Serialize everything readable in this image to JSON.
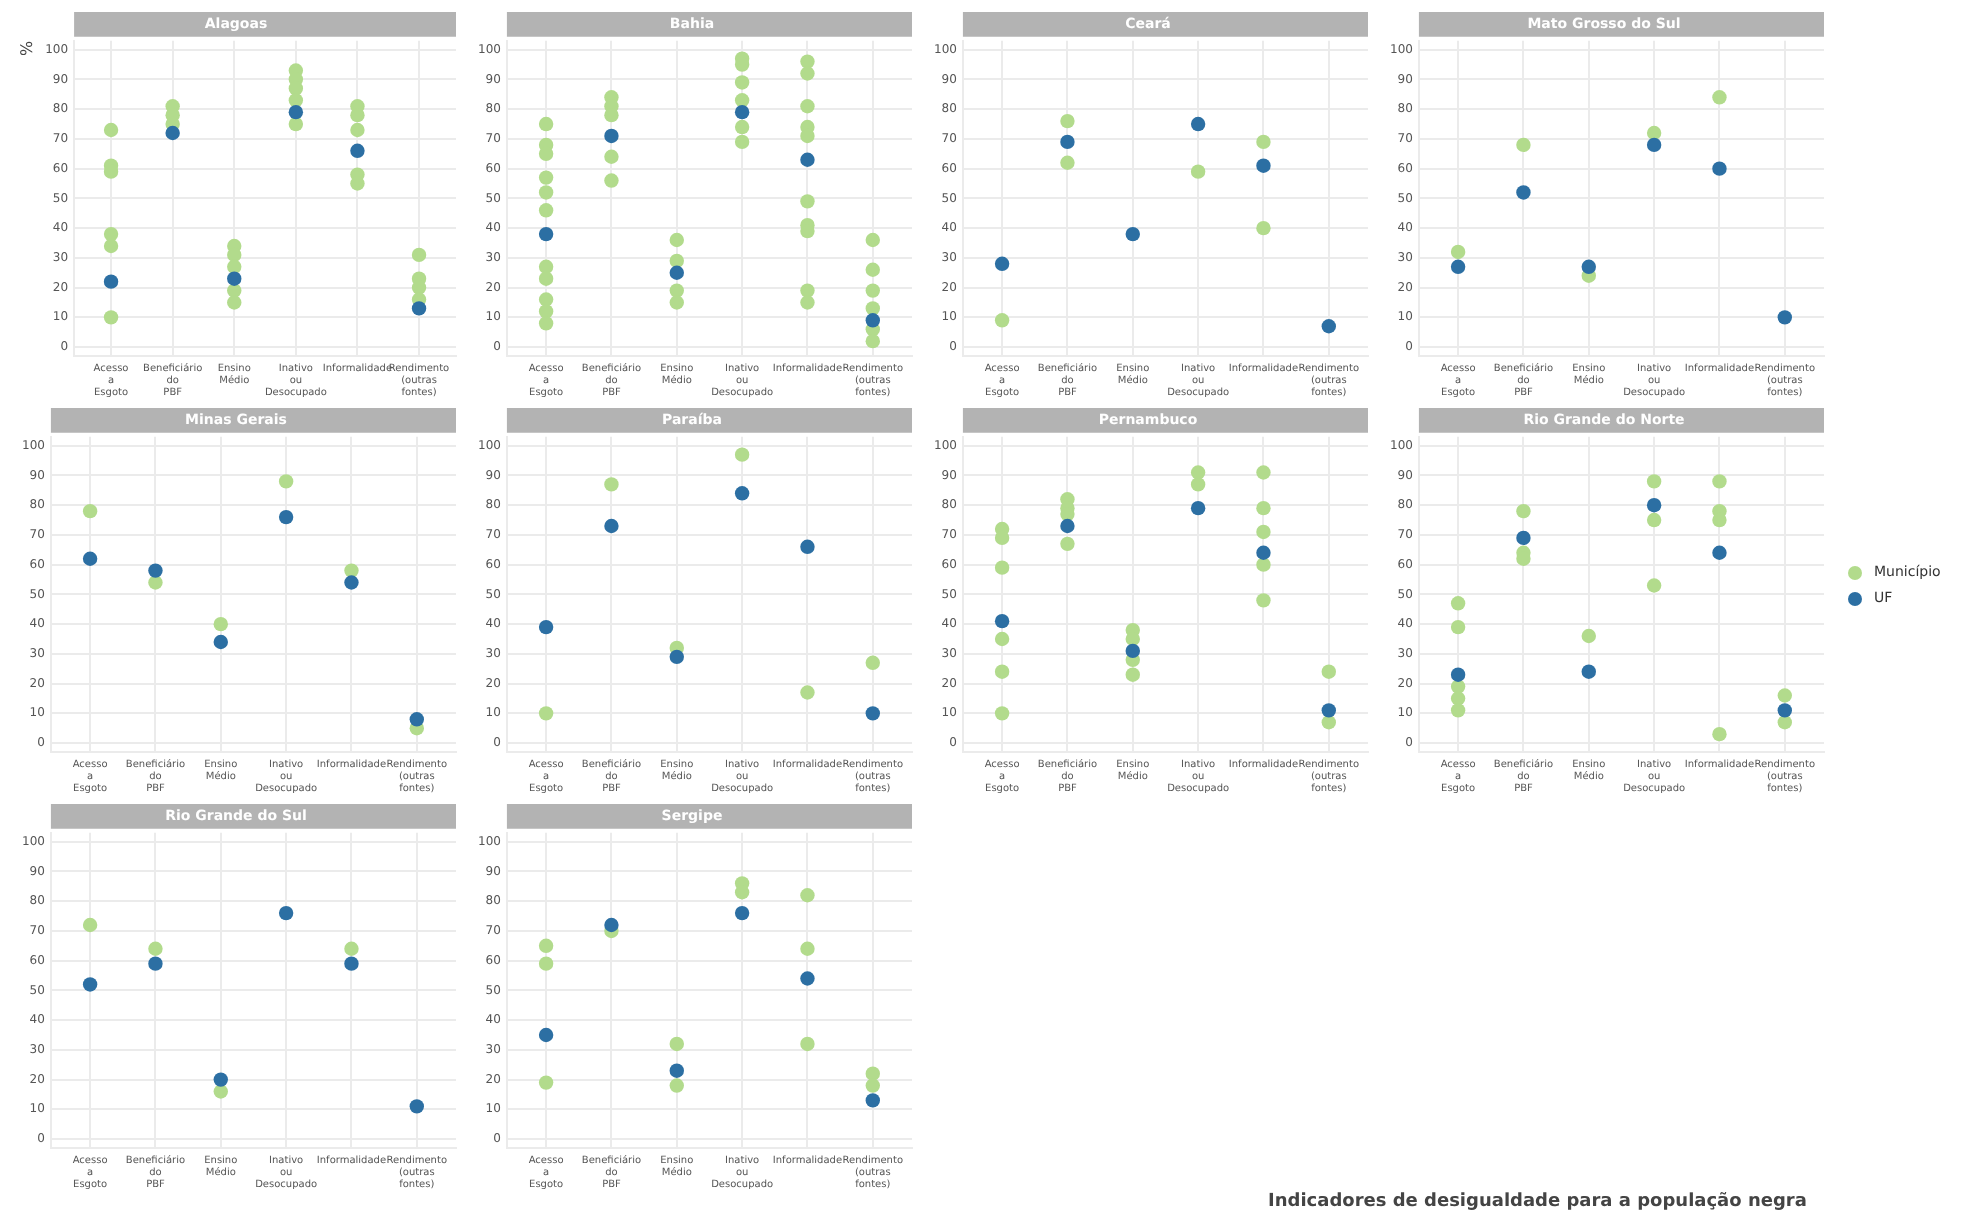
{
  "chart_data": [
    {
      "type": "scatter",
      "title": "Alagoas",
      "ylabel": "%",
      "categories": [
        "Acesso a Esgoto",
        "Beneficiário do PBF",
        "Ensino Médio",
        "Inativo ou Desocupado",
        "Informalidade",
        "Rendimento (outras fontes)"
      ],
      "ylim": [
        -3,
        103
      ],
      "yticks": [
        0,
        10,
        20,
        30,
        40,
        50,
        60,
        70,
        80,
        90,
        100
      ],
      "grid": true,
      "marker": "circle",
      "series": [
        {
          "color": "#b2db8c",
          "x": [
            "Acesso a Esgoto",
            "Acesso a Esgoto",
            "Acesso a Esgoto",
            "Acesso a Esgoto",
            "Acesso a Esgoto",
            "Acesso a Esgoto",
            "Beneficiário do PBF",
            "Beneficiário do PBF",
            "Beneficiário do PBF",
            "Ensino Médio",
            "Ensino Médio",
            "Ensino Médio",
            "Ensino Médio",
            "Ensino Médio",
            "Inativo ou Desocupado",
            "Inativo ou Desocupado",
            "Inativo ou Desocupado",
            "Inativo ou Desocupado",
            "Inativo ou Desocupado",
            "Informalidade",
            "Informalidade",
            "Informalidade",
            "Informalidade",
            "Informalidade",
            "Rendimento (outras fontes)",
            "Rendimento (outras fontes)",
            "Rendimento (outras fontes)",
            "Rendimento (outras fontes)"
          ],
          "values": [
            73,
            61,
            59,
            38,
            34,
            10,
            81,
            78,
            75,
            34,
            31,
            27,
            19,
            15,
            93,
            90,
            87,
            83,
            75,
            81,
            78,
            73,
            58,
            55,
            31,
            23,
            20,
            16
          ]
        },
        {
          "color": "#2c6fa3",
          "values": [
            22,
            72,
            23,
            79,
            66,
            13
          ]
        }
      ]
    },
    {
      "type": "scatter",
      "title": "Bahia",
      "categories": [
        "Acesso a Esgoto",
        "Beneficiário do PBF",
        "Ensino Médio",
        "Inativo ou Desocupado",
        "Informalidade",
        "Rendimento (outras fontes)"
      ],
      "ylim": [
        -3,
        103
      ],
      "yticks": [
        0,
        10,
        20,
        30,
        40,
        50,
        60,
        70,
        80,
        90,
        100
      ],
      "grid": true,
      "marker": "circle",
      "series": [
        {
          "color": "#b2db8c",
          "x": [
            "Acesso a Esgoto",
            "Acesso a Esgoto",
            "Acesso a Esgoto",
            "Acesso a Esgoto",
            "Acesso a Esgoto",
            "Acesso a Esgoto",
            "Acesso a Esgoto",
            "Acesso a Esgoto",
            "Acesso a Esgoto",
            "Acesso a Esgoto",
            "Acesso a Esgoto",
            "Beneficiário do PBF",
            "Beneficiário do PBF",
            "Beneficiário do PBF",
            "Beneficiário do PBF",
            "Beneficiário do PBF",
            "Ensino Médio",
            "Ensino Médio",
            "Ensino Médio",
            "Ensino Médio",
            "Inativo ou Desocupado",
            "Inativo ou Desocupado",
            "Inativo ou Desocupado",
            "Inativo ou Desocupado",
            "Inativo ou Desocupado",
            "Inativo ou Desocupado",
            "Informalidade",
            "Informalidade",
            "Informalidade",
            "Informalidade",
            "Informalidade",
            "Informalidade",
            "Informalidade",
            "Informalidade",
            "Informalidade",
            "Informalidade",
            "Rendimento (outras fontes)",
            "Rendimento (outras fontes)",
            "Rendimento (outras fontes)",
            "Rendimento (outras fontes)",
            "Rendimento (outras fontes)",
            "Rendimento (outras fontes)"
          ],
          "values": [
            75,
            68,
            65,
            57,
            52,
            46,
            27,
            23,
            16,
            12,
            8,
            84,
            81,
            78,
            64,
            56,
            36,
            29,
            19,
            15,
            97,
            95,
            89,
            83,
            74,
            69,
            96,
            92,
            81,
            74,
            71,
            49,
            41,
            39,
            19,
            15,
            36,
            26,
            19,
            13,
            6,
            2
          ]
        },
        {
          "color": "#2c6fa3",
          "values": [
            38,
            71,
            25,
            79,
            63,
            9
          ]
        }
      ]
    },
    {
      "type": "scatter",
      "title": "Ceará",
      "categories": [
        "Acesso a Esgoto",
        "Beneficiário do PBF",
        "Ensino Médio",
        "Inativo ou Desocupado",
        "Informalidade",
        "Rendimento (outras fontes)"
      ],
      "ylim": [
        -3,
        103
      ],
      "yticks": [
        0,
        10,
        20,
        30,
        40,
        50,
        60,
        70,
        80,
        90,
        100
      ],
      "grid": true,
      "marker": "circle",
      "series": [
        {
          "color": "#b2db8c",
          "x": [
            "Acesso a Esgoto",
            "Beneficiário do PBF",
            "Beneficiário do PBF",
            "Inativo ou Desocupado",
            "Informalidade",
            "Informalidade"
          ],
          "values": [
            9,
            76,
            62,
            59,
            69,
            40
          ]
        },
        {
          "color": "#2c6fa3",
          "values": [
            28,
            69,
            38,
            75,
            61,
            7
          ]
        }
      ]
    },
    {
      "type": "scatter",
      "title": "Mato Grosso do Sul",
      "categories": [
        "Acesso a Esgoto",
        "Beneficiário do PBF",
        "Ensino Médio",
        "Inativo ou Desocupado",
        "Informalidade",
        "Rendimento (outras fontes)"
      ],
      "ylim": [
        -3,
        103
      ],
      "yticks": [
        0,
        10,
        20,
        30,
        40,
        50,
        60,
        70,
        80,
        90,
        100
      ],
      "grid": true,
      "marker": "circle",
      "series": [
        {
          "color": "#b2db8c",
          "x": [
            "Acesso a Esgoto",
            "Beneficiário do PBF",
            "Ensino Médio",
            "Inativo ou Desocupado",
            "Informalidade"
          ],
          "values": [
            32,
            68,
            24,
            72,
            84
          ]
        },
        {
          "color": "#2c6fa3",
          "values": [
            27,
            52,
            27,
            68,
            60,
            10
          ]
        }
      ]
    },
    {
      "type": "scatter",
      "title": "Minas Gerais",
      "categories": [
        "Acesso a Esgoto",
        "Beneficiário do PBF",
        "Ensino Médio",
        "Inativo ou Desocupado",
        "Informalidade",
        "Rendimento (outras fontes)"
      ],
      "ylim": [
        -3,
        103
      ],
      "yticks": [
        0,
        10,
        20,
        30,
        40,
        50,
        60,
        70,
        80,
        90,
        100
      ],
      "grid": true,
      "marker": "circle",
      "series": [
        {
          "color": "#b2db8c",
          "x": [
            "Acesso a Esgoto",
            "Beneficiário do PBF",
            "Ensino Médio",
            "Inativo ou Desocupado",
            "Informalidade",
            "Rendimento (outras fontes)"
          ],
          "values": [
            78,
            54,
            40,
            88,
            58,
            5
          ]
        },
        {
          "color": "#2c6fa3",
          "values": [
            62,
            58,
            34,
            76,
            54,
            8
          ]
        }
      ]
    },
    {
      "type": "scatter",
      "title": "Paraíba",
      "categories": [
        "Acesso a Esgoto",
        "Beneficiário do PBF",
        "Ensino Médio",
        "Inativo ou Desocupado",
        "Informalidade",
        "Rendimento (outras fontes)"
      ],
      "ylim": [
        -3,
        103
      ],
      "yticks": [
        0,
        10,
        20,
        30,
        40,
        50,
        60,
        70,
        80,
        90,
        100
      ],
      "grid": true,
      "marker": "circle",
      "series": [
        {
          "color": "#b2db8c",
          "x": [
            "Acesso a Esgoto",
            "Beneficiário do PBF",
            "Ensino Médio",
            "Inativo ou Desocupado",
            "Informalidade",
            "Rendimento (outras fontes)"
          ],
          "values": [
            10,
            87,
            32,
            97,
            17,
            27
          ]
        },
        {
          "color": "#2c6fa3",
          "values": [
            39,
            73,
            29,
            84,
            66,
            10
          ]
        }
      ]
    },
    {
      "type": "scatter",
      "title": "Pernambuco",
      "categories": [
        "Acesso a Esgoto",
        "Beneficiário do PBF",
        "Ensino Médio",
        "Inativo ou Desocupado",
        "Informalidade",
        "Rendimento (outras fontes)"
      ],
      "ylim": [
        -3,
        103
      ],
      "yticks": [
        0,
        10,
        20,
        30,
        40,
        50,
        60,
        70,
        80,
        90,
        100
      ],
      "grid": true,
      "marker": "circle",
      "series": [
        {
          "color": "#b2db8c",
          "x": [
            "Acesso a Esgoto",
            "Acesso a Esgoto",
            "Acesso a Esgoto",
            "Acesso a Esgoto",
            "Acesso a Esgoto",
            "Acesso a Esgoto",
            "Beneficiário do PBF",
            "Beneficiário do PBF",
            "Beneficiário do PBF",
            "Beneficiário do PBF",
            "Ensino Médio",
            "Ensino Médio",
            "Ensino Médio",
            "Ensino Médio",
            "Inativo ou Desocupado",
            "Inativo ou Desocupado",
            "Informalidade",
            "Informalidade",
            "Informalidade",
            "Informalidade",
            "Informalidade",
            "Rendimento (outras fontes)",
            "Rendimento (outras fontes)"
          ],
          "values": [
            72,
            69,
            59,
            35,
            24,
            10,
            82,
            79,
            77,
            67,
            38,
            35,
            28,
            23,
            91,
            87,
            91,
            79,
            71,
            60,
            48,
            24,
            7
          ]
        },
        {
          "color": "#2c6fa3",
          "values": [
            41,
            73,
            31,
            79,
            64,
            11
          ]
        }
      ]
    },
    {
      "type": "scatter",
      "title": "Rio Grande do Norte",
      "categories": [
        "Acesso a Esgoto",
        "Beneficiário do PBF",
        "Ensino Médio",
        "Inativo ou Desocupado",
        "Informalidade",
        "Rendimento (outras fontes)"
      ],
      "ylim": [
        -3,
        103
      ],
      "yticks": [
        0,
        10,
        20,
        30,
        40,
        50,
        60,
        70,
        80,
        90,
        100
      ],
      "grid": true,
      "marker": "circle",
      "legend": "right",
      "series": [
        {
          "name": "Município",
          "color": "#b2db8c",
          "x": [
            "Acesso a Esgoto",
            "Acesso a Esgoto",
            "Acesso a Esgoto",
            "Acesso a Esgoto",
            "Acesso a Esgoto",
            "Beneficiário do PBF",
            "Beneficiário do PBF",
            "Beneficiário do PBF",
            "Ensino Médio",
            "Inativo ou Desocupado",
            "Inativo ou Desocupado",
            "Inativo ou Desocupado",
            "Informalidade",
            "Informalidade",
            "Informalidade",
            "Informalidade",
            "Rendimento (outras fontes)",
            "Rendimento (outras fontes)"
          ],
          "values": [
            47,
            39,
            19,
            15,
            11,
            78,
            64,
            62,
            36,
            88,
            75,
            53,
            88,
            78,
            75,
            3,
            16,
            7
          ]
        },
        {
          "name": "UF",
          "color": "#2c6fa3",
          "values": [
            23,
            69,
            24,
            80,
            64,
            11
          ]
        }
      ]
    },
    {
      "type": "scatter",
      "title": "Rio Grande do Sul",
      "categories": [
        "Acesso a Esgoto",
        "Beneficiário do PBF",
        "Ensino Médio",
        "Inativo ou Desocupado",
        "Informalidade",
        "Rendimento (outras fontes)"
      ],
      "ylim": [
        -3,
        103
      ],
      "yticks": [
        0,
        10,
        20,
        30,
        40,
        50,
        60,
        70,
        80,
        90,
        100
      ],
      "grid": true,
      "marker": "circle",
      "series": [
        {
          "color": "#b2db8c",
          "x": [
            "Acesso a Esgoto",
            "Beneficiário do PBF",
            "Ensino Médio",
            "Inativo ou Desocupado",
            "Informalidade",
            "Rendimento (outras fontes)"
          ],
          "values": [
            72,
            64,
            16,
            null,
            64,
            null
          ]
        },
        {
          "color": "#2c6fa3",
          "values": [
            52,
            59,
            20,
            76,
            59,
            11
          ]
        }
      ]
    },
    {
      "type": "scatter",
      "title": "Sergipe",
      "categories": [
        "Acesso a Esgoto",
        "Beneficiário do PBF",
        "Ensino Médio",
        "Inativo ou Desocupado",
        "Informalidade",
        "Rendimento (outras fontes)"
      ],
      "ylim": [
        -3,
        103
      ],
      "yticks": [
        0,
        10,
        20,
        30,
        40,
        50,
        60,
        70,
        80,
        90,
        100
      ],
      "grid": true,
      "marker": "circle",
      "annotations": [
        "Indicadores de desigualdade para a população negra"
      ],
      "series": [
        {
          "color": "#b2db8c",
          "x": [
            "Acesso a Esgoto",
            "Acesso a Esgoto",
            "Acesso a Esgoto",
            "Beneficiário do PBF",
            "Ensino Médio",
            "Ensino Médio",
            "Inativo ou Desocupado",
            "Inativo ou Desocupado",
            "Informalidade",
            "Informalidade",
            "Informalidade",
            "Rendimento (outras fontes)",
            "Rendimento (outras fontes)"
          ],
          "values": [
            65,
            59,
            19,
            70,
            32,
            18,
            86,
            83,
            82,
            64,
            32,
            22,
            18
          ]
        },
        {
          "color": "#2c6fa3",
          "values": [
            35,
            72,
            23,
            76,
            54,
            13
          ]
        }
      ]
    }
  ]
}
